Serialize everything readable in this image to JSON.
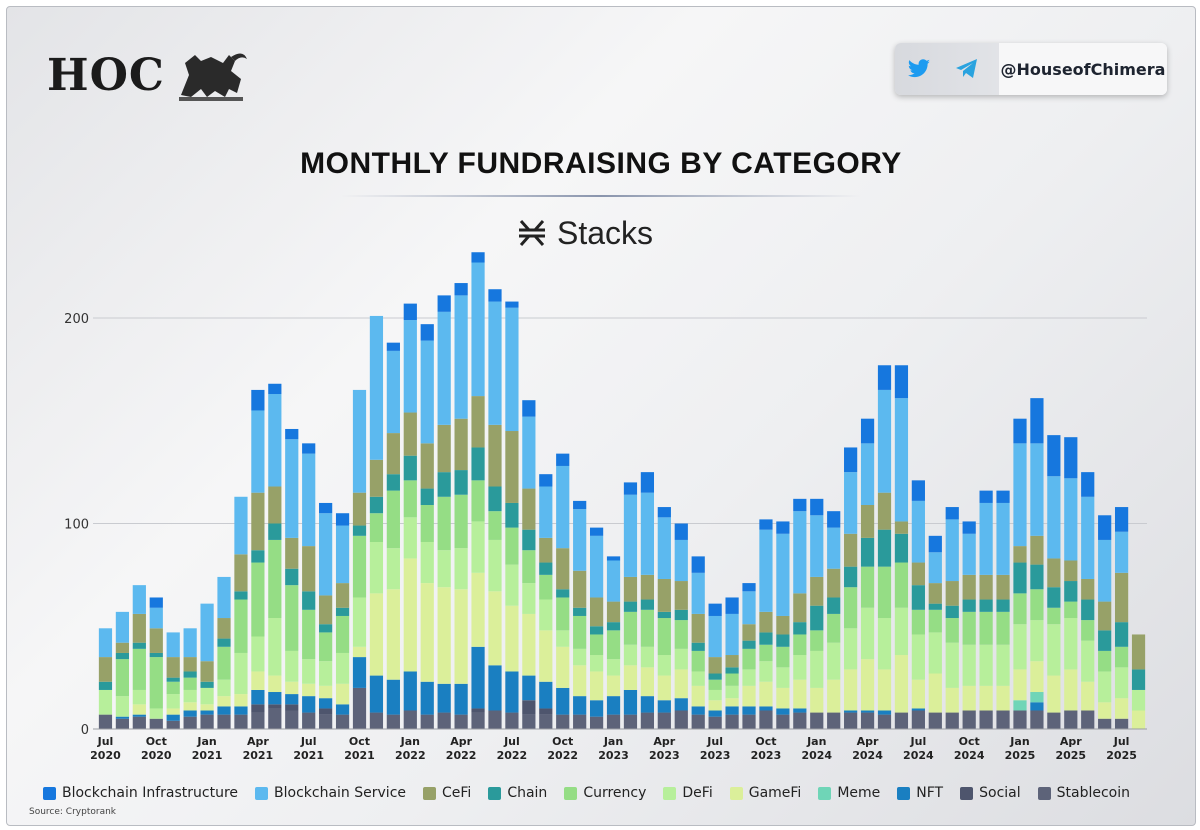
{
  "brand": {
    "logo_text": "HOC",
    "handle": "@HouseofChimera"
  },
  "header": {
    "title": "MONTHLY FUNDRAISING BY CATEGORY",
    "project": "Stacks"
  },
  "source": "Source: Cryptorank",
  "chart_data": {
    "type": "bar",
    "stacked": true,
    "title": "MONTHLY FUNDRAISING BY CATEGORY",
    "subtitle": "Stacks",
    "ylim": [
      0,
      230
    ],
    "yticks": [
      0,
      100,
      200
    ],
    "grid": true,
    "legend_position": "bottom",
    "xtick_labels": [
      {
        "index": 0,
        "month": "Jul",
        "year": "2020"
      },
      {
        "index": 3,
        "month": "Oct",
        "year": "2020"
      },
      {
        "index": 6,
        "month": "Jan",
        "year": "2021"
      },
      {
        "index": 9,
        "month": "Apr",
        "year": "2021"
      },
      {
        "index": 12,
        "month": "Jul",
        "year": "2021"
      },
      {
        "index": 15,
        "month": "Oct",
        "year": "2021"
      },
      {
        "index": 18,
        "month": "Jan",
        "year": "2022"
      },
      {
        "index": 21,
        "month": "Apr",
        "year": "2022"
      },
      {
        "index": 24,
        "month": "Jul",
        "year": "2022"
      },
      {
        "index": 27,
        "month": "Oct",
        "year": "2022"
      },
      {
        "index": 30,
        "month": "Jan",
        "year": "2023"
      },
      {
        "index": 33,
        "month": "Apr",
        "year": "2023"
      },
      {
        "index": 36,
        "month": "Jul",
        "year": "2023"
      },
      {
        "index": 39,
        "month": "Oct",
        "year": "2023"
      },
      {
        "index": 42,
        "month": "Jan",
        "year": "2024"
      },
      {
        "index": 45,
        "month": "Apr",
        "year": "2024"
      },
      {
        "index": 48,
        "month": "Jul",
        "year": "2024"
      },
      {
        "index": 51,
        "month": "Oct",
        "year": "2024"
      },
      {
        "index": 54,
        "month": "Jan",
        "year": "2025"
      },
      {
        "index": 57,
        "month": "Apr",
        "year": "2025"
      },
      {
        "index": 60,
        "month": "Jul",
        "year": "2025"
      }
    ],
    "categories": [
      "Jul 2020",
      "Aug 2020",
      "Sep 2020",
      "Oct 2020",
      "Nov 2020",
      "Dec 2020",
      "Jan 2021",
      "Feb 2021",
      "Mar 2021",
      "Apr 2021",
      "May 2021",
      "Jun 2021",
      "Jul 2021",
      "Aug 2021",
      "Sep 2021",
      "Oct 2021",
      "Nov 2021",
      "Dec 2021",
      "Jan 2022",
      "Feb 2022",
      "Mar 2022",
      "Apr 2022",
      "May 2022",
      "Jun 2022",
      "Jul 2022",
      "Aug 2022",
      "Sep 2022",
      "Oct 2022",
      "Nov 2022",
      "Dec 2022",
      "Jan 2023",
      "Feb 2023",
      "Mar 2023",
      "Apr 2023",
      "May 2023",
      "Jun 2023",
      "Jul 2023",
      "Aug 2023",
      "Sep 2023",
      "Oct 2023",
      "Nov 2023",
      "Dec 2023",
      "Jan 2024",
      "Feb 2024",
      "Mar 2024",
      "Apr 2024",
      "May 2024",
      "Jun 2024",
      "Jul 2024",
      "Aug 2024",
      "Sep 2024",
      "Oct 2024",
      "Nov 2024",
      "Dec 2024",
      "Jan 2025",
      "Feb 2025",
      "Mar 2025",
      "Apr 2025",
      "May 2025",
      "Jun 2025",
      "Jul 2025",
      "Aug 2025"
    ],
    "series": [
      {
        "name": "Stablecoin",
        "color": "#5d6379",
        "values": [
          7,
          5,
          6,
          5,
          4,
          6,
          7,
          7,
          7,
          8,
          10,
          9,
          8,
          7,
          7,
          20,
          8,
          7,
          9,
          7,
          8,
          7,
          8,
          9,
          8,
          7,
          7,
          7,
          7,
          6,
          7,
          7,
          8,
          8,
          9,
          7,
          6,
          7,
          7,
          9,
          7,
          8,
          8,
          8,
          8,
          8,
          7,
          8,
          9,
          8,
          8,
          9,
          9,
          9,
          9,
          9,
          8,
          9,
          9,
          5,
          5,
          0
        ]
      },
      {
        "name": "Social",
        "color": "#4e556d",
        "values": [
          0,
          0,
          0,
          0,
          0,
          0,
          0,
          0,
          0,
          4,
          2,
          3,
          0,
          3,
          0,
          0,
          0,
          0,
          0,
          0,
          0,
          0,
          2,
          0,
          0,
          7,
          3,
          0,
          0,
          0,
          0,
          0,
          0,
          0,
          0,
          0,
          0,
          0,
          0,
          0,
          0,
          0,
          0,
          0,
          0,
          0,
          0,
          0,
          0,
          0,
          0,
          0,
          0,
          0,
          0,
          0,
          0,
          0,
          0,
          0,
          0,
          0
        ]
      },
      {
        "name": "NFT",
        "color": "#1a7fc1",
        "values": [
          0,
          1,
          1,
          0,
          3,
          3,
          2,
          4,
          4,
          7,
          6,
          5,
          8,
          5,
          5,
          15,
          18,
          17,
          19,
          16,
          14,
          15,
          30,
          22,
          20,
          12,
          13,
          13,
          9,
          8,
          9,
          12,
          8,
          6,
          6,
          4,
          3,
          4,
          4,
          2,
          3,
          2,
          0,
          0,
          1,
          1,
          2,
          0,
          1,
          0,
          0,
          0,
          0,
          0,
          0,
          4,
          0,
          0,
          0,
          0,
          0,
          0
        ]
      },
      {
        "name": "Meme",
        "color": "#6fd5b7",
        "values": [
          0,
          0,
          0,
          0,
          0,
          0,
          0,
          0,
          0,
          0,
          0,
          0,
          0,
          0,
          0,
          0,
          0,
          0,
          0,
          0,
          0,
          0,
          0,
          0,
          0,
          0,
          0,
          0,
          0,
          0,
          0,
          0,
          0,
          0,
          0,
          0,
          0,
          0,
          0,
          0,
          0,
          0,
          0,
          0,
          0,
          0,
          0,
          0,
          0,
          0,
          0,
          0,
          0,
          0,
          5,
          5,
          0,
          0,
          0,
          0,
          0,
          0
        ]
      },
      {
        "name": "GameFi",
        "color": "#dbef9a",
        "values": [
          0,
          0,
          5,
          0,
          3,
          4,
          3,
          5,
          6,
          9,
          8,
          6,
          6,
          6,
          10,
          5,
          40,
          44,
          55,
          48,
          47,
          46,
          36,
          36,
          32,
          30,
          25,
          20,
          15,
          14,
          10,
          12,
          14,
          12,
          14,
          10,
          5,
          4,
          10,
          12,
          10,
          14,
          12,
          16,
          20,
          25,
          20,
          28,
          14,
          19,
          12,
          12,
          12,
          12,
          15,
          15,
          18,
          20,
          14,
          8,
          10,
          9
        ]
      },
      {
        "name": "DeFi",
        "color": "#b7ef9b",
        "values": [
          12,
          10,
          7,
          5,
          7,
          6,
          8,
          8,
          20,
          17,
          28,
          15,
          12,
          12,
          15,
          24,
          25,
          20,
          20,
          20,
          18,
          20,
          25,
          25,
          20,
          15,
          15,
          8,
          8,
          8,
          8,
          10,
          10,
          10,
          10,
          7,
          5,
          6,
          8,
          10,
          10,
          12,
          18,
          18,
          20,
          25,
          25,
          23,
          22,
          20,
          22,
          20,
          20,
          20,
          22,
          20,
          25,
          25,
          20,
          15,
          15,
          10
        ]
      },
      {
        "name": "Currency",
        "color": "#95dd85",
        "values": [
          0,
          18,
          20,
          25,
          6,
          6,
          0,
          16,
          26,
          36,
          38,
          32,
          24,
          14,
          18,
          30,
          14,
          28,
          18,
          18,
          26,
          26,
          20,
          14,
          18,
          16,
          12,
          16,
          16,
          10,
          14,
          16,
          18,
          18,
          14,
          10,
          5,
          6,
          10,
          8,
          10,
          10,
          10,
          14,
          20,
          20,
          25,
          22,
          12,
          11,
          12,
          16,
          16,
          16,
          15,
          15,
          8,
          8,
          10,
          10,
          10,
          0
        ]
      },
      {
        "name": "Chain",
        "color": "#2a9a9b",
        "values": [
          4,
          3,
          3,
          2,
          2,
          3,
          3,
          4,
          4,
          6,
          8,
          8,
          9,
          4,
          4,
          5,
          8,
          8,
          12,
          8,
          12,
          12,
          16,
          12,
          12,
          10,
          6,
          4,
          4,
          4,
          4,
          5,
          5,
          3,
          5,
          4,
          3,
          3,
          4,
          6,
          6,
          6,
          12,
          8,
          10,
          14,
          18,
          14,
          12,
          3,
          6,
          6,
          6,
          6,
          15,
          12,
          10,
          10,
          10,
          10,
          12,
          10
        ]
      },
      {
        "name": "CeFi",
        "color": "#97a168",
        "values": [
          12,
          5,
          14,
          12,
          10,
          7,
          10,
          10,
          18,
          28,
          18,
          15,
          22,
          14,
          12,
          16,
          18,
          20,
          21,
          22,
          23,
          25,
          25,
          30,
          35,
          20,
          12,
          20,
          18,
          14,
          10,
          12,
          12,
          16,
          14,
          14,
          8,
          6,
          8,
          10,
          9,
          14,
          14,
          14,
          16,
          16,
          18,
          6,
          11,
          10,
          12,
          12,
          12,
          12,
          8,
          14,
          14,
          10,
          10,
          14,
          24,
          17
        ]
      },
      {
        "name": "Blockchain Service",
        "color": "#5cb9ef",
        "values": [
          14,
          15,
          14,
          10,
          12,
          14,
          28,
          20,
          28,
          40,
          45,
          48,
          45,
          40,
          28,
          50,
          70,
          40,
          45,
          50,
          55,
          60,
          65,
          60,
          60,
          35,
          25,
          40,
          30,
          30,
          20,
          40,
          40,
          30,
          20,
          20,
          20,
          20,
          16,
          40,
          40,
          40,
          30,
          20,
          30,
          30,
          50,
          60,
          30,
          15,
          30,
          20,
          35,
          35,
          50,
          45,
          40,
          40,
          40,
          30,
          20,
          0
        ]
      },
      {
        "name": "Blockchain Infrastructure",
        "color": "#1677de",
        "values": [
          0,
          0,
          0,
          5,
          0,
          0,
          0,
          0,
          0,
          10,
          5,
          5,
          5,
          5,
          6,
          0,
          0,
          4,
          8,
          8,
          8,
          6,
          5,
          6,
          3,
          8,
          6,
          6,
          4,
          4,
          2,
          6,
          10,
          5,
          8,
          8,
          6,
          8,
          4,
          5,
          6,
          6,
          8,
          8,
          12,
          12,
          12,
          16,
          10,
          8,
          6,
          6,
          6,
          6,
          12,
          22,
          20,
          20,
          12,
          12,
          12,
          0
        ]
      }
    ],
    "legend": [
      {
        "label": "Blockchain Infrastructure",
        "color": "#1677de"
      },
      {
        "label": "Blockchain Service",
        "color": "#5cb9ef"
      },
      {
        "label": "CeFi",
        "color": "#97a168"
      },
      {
        "label": "Chain",
        "color": "#2a9a9b"
      },
      {
        "label": "Currency",
        "color": "#95dd85"
      },
      {
        "label": "DeFi",
        "color": "#b7ef9b"
      },
      {
        "label": "GameFi",
        "color": "#dbef9a"
      },
      {
        "label": "Meme",
        "color": "#6fd5b7"
      },
      {
        "label": "NFT",
        "color": "#1a7fc1"
      },
      {
        "label": "Social",
        "color": "#4e556d"
      },
      {
        "label": "Stablecoin",
        "color": "#5d6379"
      }
    ]
  }
}
